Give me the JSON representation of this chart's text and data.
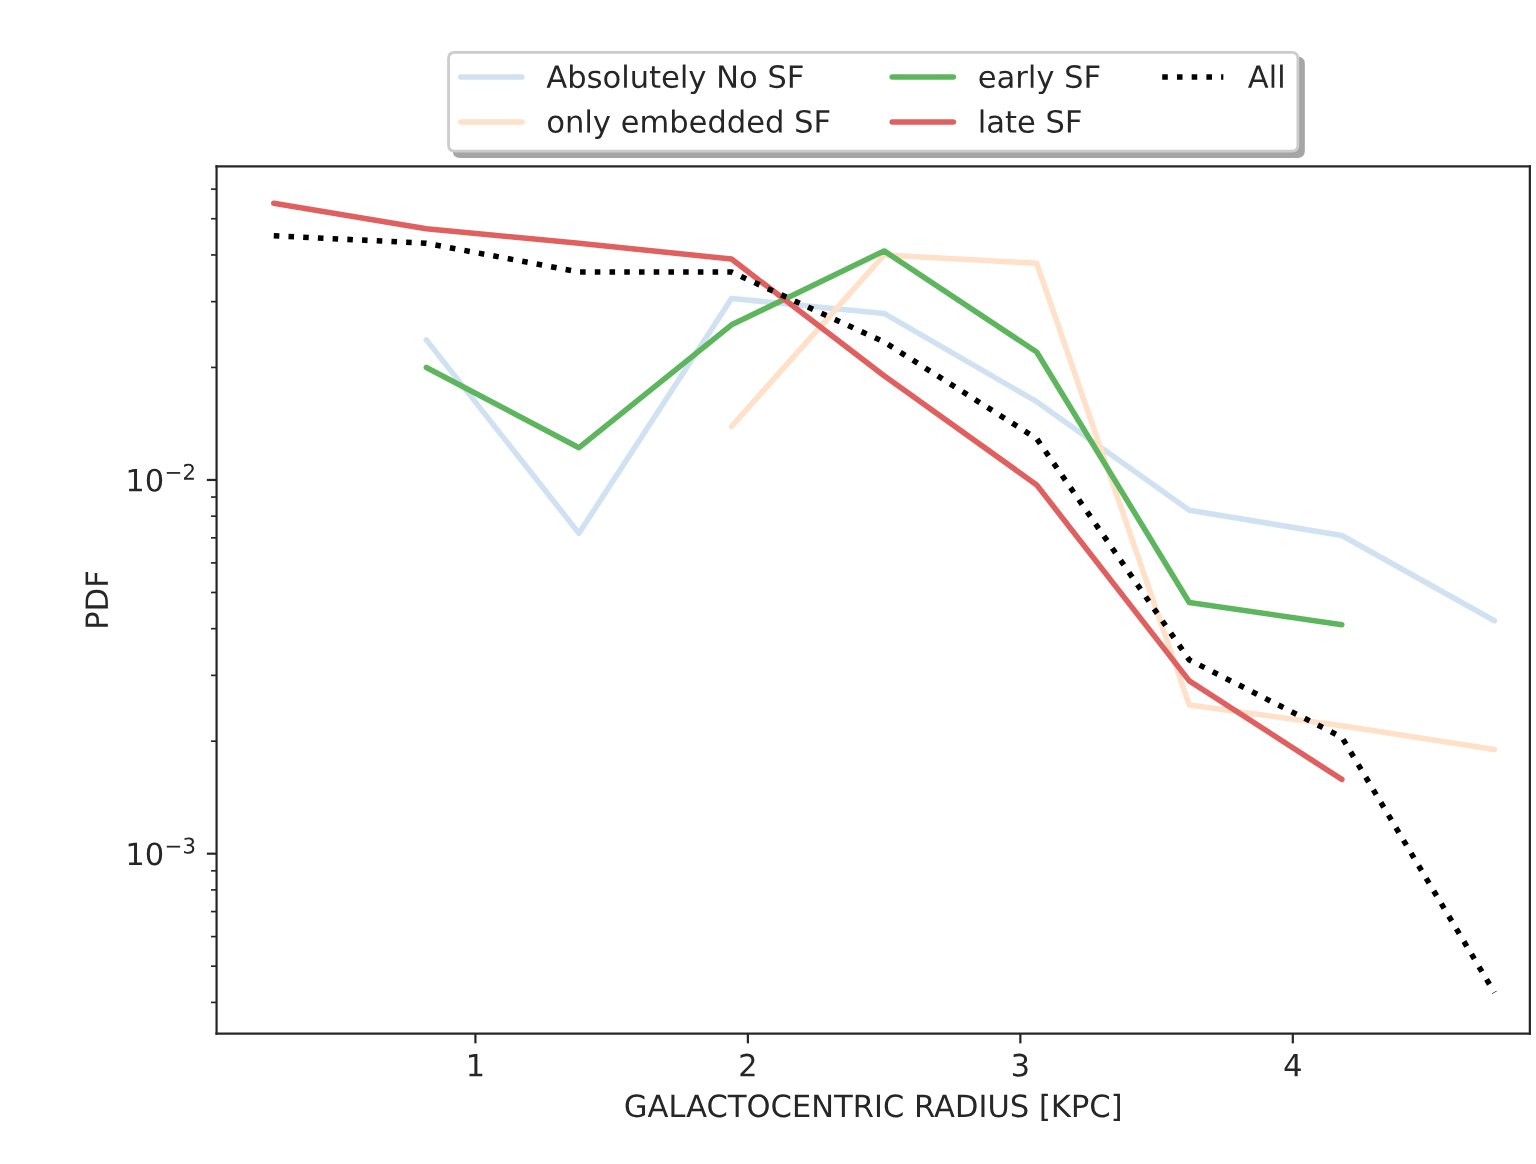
{
  "chart_data": {
    "type": "line",
    "xlabel": "GALACTOCENTRIC RADIUS [KPC]",
    "ylabel": "PDF",
    "x": [
      0.26,
      0.82,
      1.38,
      1.94,
      2.5,
      3.06,
      3.62,
      4.18,
      4.74
    ],
    "series": [
      {
        "name": "Absolutely No SF",
        "color": "#d0e2f2",
        "values": [
          null,
          0.0237,
          0.0072,
          0.0306,
          0.0279,
          0.0162,
          0.0083,
          0.0071,
          0.0042
        ]
      },
      {
        "name": "only embedded SF",
        "color": "#ffe0c8",
        "values": [
          null,
          null,
          null,
          0.0139,
          0.04,
          0.038,
          0.0025,
          0.0022,
          0.0019
        ]
      },
      {
        "name": "early SF",
        "color": "#5db65d",
        "values": [
          null,
          0.02,
          0.0122,
          0.026,
          0.041,
          0.022,
          0.0047,
          0.0041,
          null
        ]
      },
      {
        "name": "late SF",
        "color": "#e06060",
        "values": [
          0.055,
          0.047,
          0.043,
          0.039,
          0.019,
          0.0097,
          0.0029,
          0.00158,
          null
        ]
      },
      {
        "name": "All",
        "color": "#000000",
        "line_style": "dotted",
        "values": [
          0.045,
          0.043,
          0.036,
          0.036,
          0.0234,
          0.0129,
          0.0033,
          0.00205,
          0.000425
        ]
      }
    ],
    "log": "y",
    "xlim": [
      0.05,
      4.87
    ],
    "ylim": [
      0.00033,
      0.069
    ],
    "xticks": [
      1,
      2,
      3,
      4
    ],
    "yticks": [
      {
        "value": 0.001,
        "label": "10$^{−3}$"
      },
      {
        "value": 0.01,
        "label": "10$^{−2}$"
      }
    ],
    "grid": false,
    "legend": "top",
    "marker": "none"
  }
}
